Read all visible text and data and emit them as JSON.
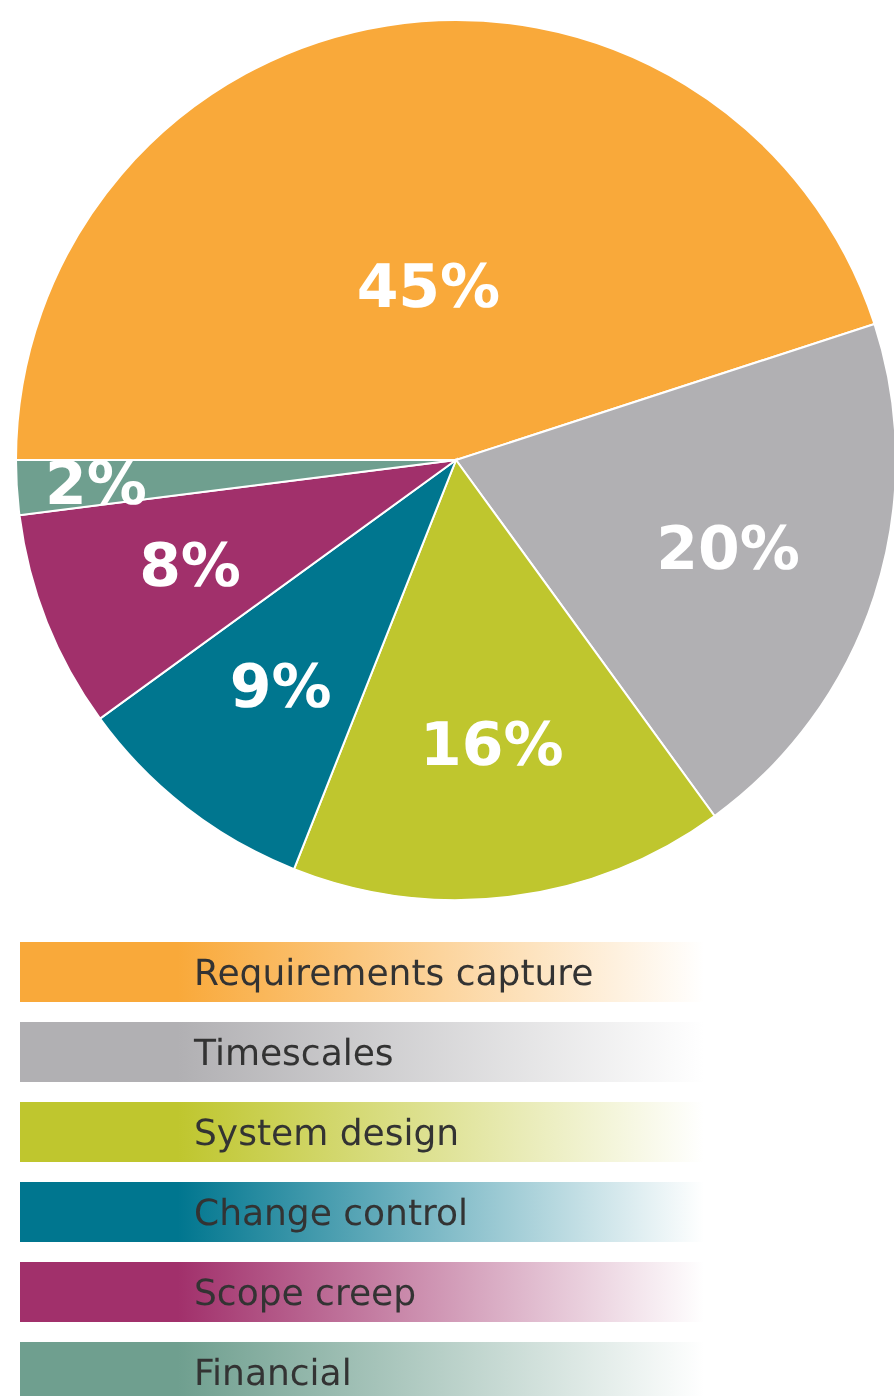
{
  "chart_data": {
    "type": "pie",
    "categories": [
      "Requirements capture",
      "Timescales",
      "System design",
      "Change control",
      "Scope creep",
      "Financial"
    ],
    "values": [
      45,
      20,
      16,
      9,
      8,
      2
    ],
    "colors": [
      "#f9a93a",
      "#b1b0b3",
      "#bfc62e",
      "#00768f",
      "#a1306b",
      "#6f9f8f"
    ],
    "value_labels": [
      "45%",
      "20%",
      "16%",
      "9%",
      "8%",
      "2%"
    ],
    "legend": "bottom"
  }
}
